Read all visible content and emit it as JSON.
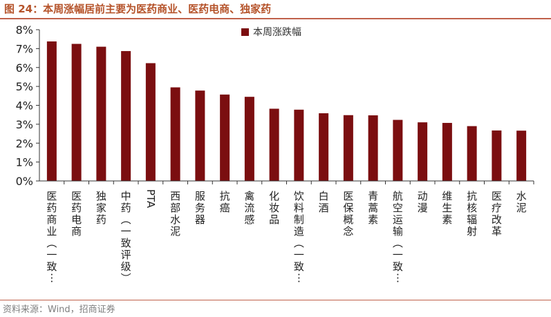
{
  "figure": {
    "title": "图 24：本周涨幅居前主要为医药商业、医药电商、独家药",
    "source": "资料来源：Wind，招商证券"
  },
  "colors": {
    "bar": "#7b0e10",
    "title": "#b5532a",
    "rule": "#c0604a",
    "axis": "#333333",
    "source": "#7f7f7f"
  },
  "chart_data": {
    "type": "bar",
    "categories": [
      "医药商业(一致…",
      "医药电商",
      "独家药",
      "中药(一致评级)",
      "PTA",
      "西部水泥",
      "服务器",
      "抗癌",
      "禽流感",
      "化妆品",
      "饮料制造(一致…",
      "白酒",
      "医保概念",
      "青蒿素",
      "航空运输(一致…",
      "动漫",
      "维生素",
      "抗核辐射",
      "医疗改革",
      "水泥"
    ],
    "series": [
      {
        "name": "本周涨跌幅",
        "values": [
          7.38,
          7.25,
          7.1,
          6.87,
          6.23,
          4.95,
          4.78,
          4.57,
          4.45,
          3.82,
          3.77,
          3.58,
          3.48,
          3.47,
          3.23,
          3.1,
          3.07,
          2.9,
          2.67,
          2.66
        ]
      }
    ],
    "y_ticks": [
      "0%",
      "1%",
      "2%",
      "3%",
      "4%",
      "5%",
      "6%",
      "7%",
      "8%"
    ],
    "ylim": [
      0,
      8
    ],
    "yunit": "%",
    "grid": false,
    "legend_position": "top-center"
  }
}
